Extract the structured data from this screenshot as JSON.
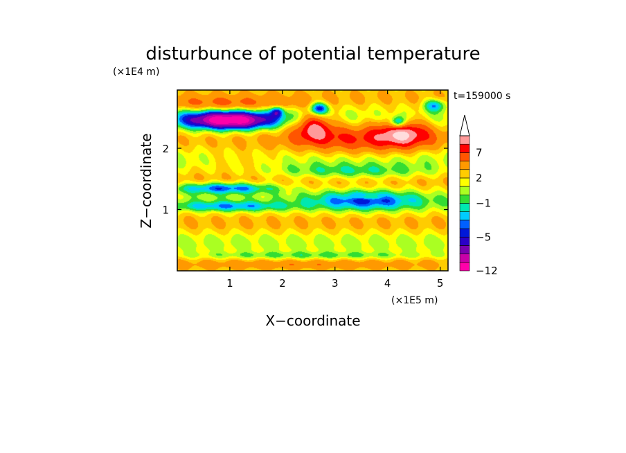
{
  "chart_data": {
    "type": "heatmap",
    "title": "disturbunce of potential temperature",
    "xlabel": "X−coordinate",
    "ylabel": "Z−coordinate",
    "x_unit": "(×1E5 m)",
    "y_unit": "(×1E4 m)",
    "time_label": "t=159000 s",
    "xlim": [
      0,
      5.15
    ],
    "ylim": [
      0,
      2.95
    ],
    "x_ticks": [
      1,
      2,
      3,
      4,
      5
    ],
    "y_ticks": [
      1,
      2
    ],
    "colorbar": {
      "levels": [
        -12,
        -10,
        -8,
        -6,
        -5,
        -4,
        -3,
        -2,
        -1,
        0,
        1,
        2,
        3,
        5,
        7,
        9,
        11
      ],
      "tick_labels": [
        "−12",
        "−5",
        "−1",
        "2",
        "7"
      ],
      "tick_values": [
        -12,
        -5,
        -1,
        2,
        7
      ],
      "colors": [
        "#ff00aa",
        "#c800a8",
        "#7a00b0",
        "#2a00c8",
        "#0018d8",
        "#0060ff",
        "#00ccff",
        "#00e8b0",
        "#33dd33",
        "#aaff22",
        "#ffff00",
        "#ffcc00",
        "#ff9900",
        "#ff5500",
        "#ff0000",
        "#ff9a9a"
      ],
      "extend_top": true
    },
    "field_features": [
      {
        "x": 1.0,
        "z": 2.45,
        "value": -9.5
      },
      {
        "x": 0.8,
        "z": 2.5,
        "value": -5
      },
      {
        "x": 3.6,
        "z": 1.15,
        "value": -4
      },
      {
        "x": 0.7,
        "z": 1.15,
        "value": -4
      },
      {
        "x": 2.7,
        "z": 2.6,
        "value": -6
      },
      {
        "x": 4.2,
        "z": 2.4,
        "value": -6
      },
      {
        "x": 2.6,
        "z": 2.35,
        "value": 8
      },
      {
        "x": 4.3,
        "z": 2.25,
        "value": 8
      },
      {
        "x": 3.4,
        "z": 2.15,
        "value": 5
      },
      {
        "x": 1.2,
        "z": 1.8,
        "value": 3
      },
      {
        "x": 3.3,
        "z": 1.65,
        "value": 0
      },
      {
        "x": 2.5,
        "z": 0.6,
        "value": 2
      },
      {
        "x": 2.4,
        "z": 0.15,
        "value": 2
      }
    ]
  }
}
